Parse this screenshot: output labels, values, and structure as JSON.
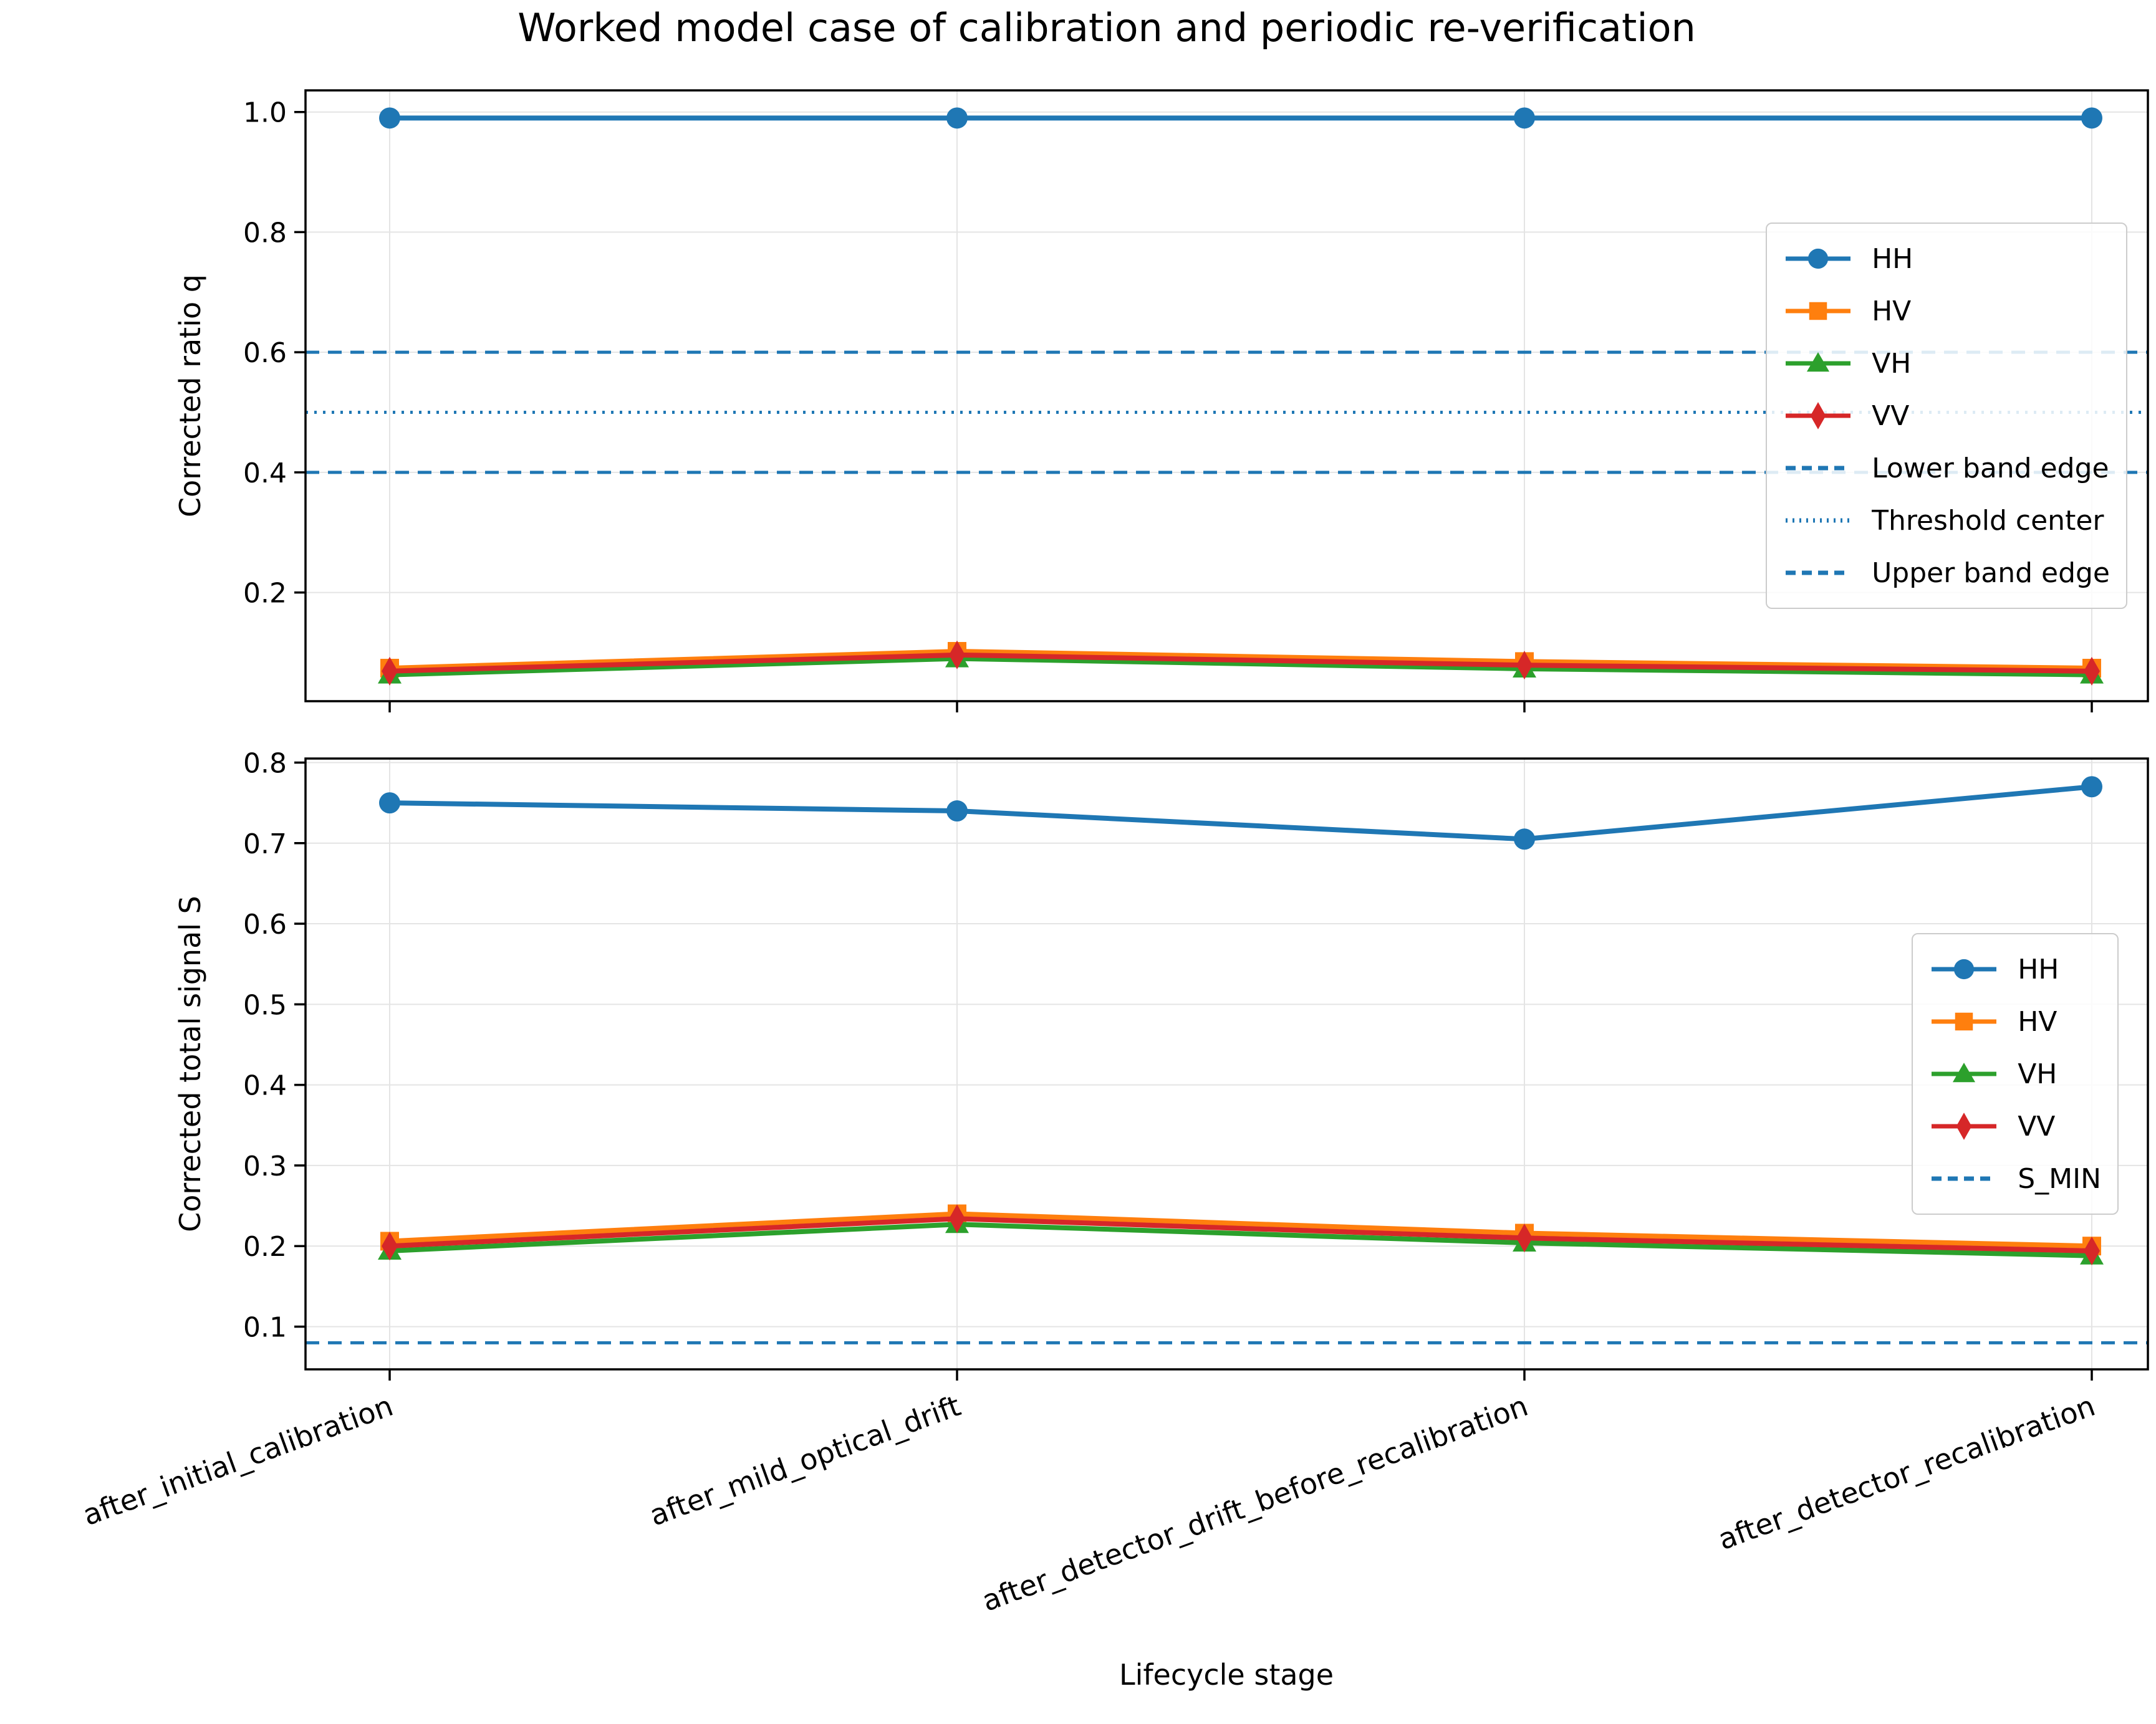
{
  "figure": {
    "title": "Worked model case of calibration and periodic re-verification",
    "xlabel": "Lifecycle stage",
    "background": "#ffffff"
  },
  "colors": {
    "HH": "#1f77b4",
    "HV": "#ff7f0e",
    "VH": "#2ca02c",
    "VV": "#d62728",
    "reference": "#1f77b4",
    "grid": "#e4e4e4",
    "spine": "#000000",
    "text": "#000000"
  },
  "categories": [
    "after_initial_calibration",
    "after_mild_optical_drift",
    "after_detector_drift_before_recalibration",
    "after_detector_recalibration"
  ],
  "chart_data": [
    {
      "type": "line",
      "ylabel": "Corrected ratio q",
      "categories": [
        "after_initial_calibration",
        "after_mild_optical_drift",
        "after_detector_drift_before_recalibration",
        "after_detector_recalibration"
      ],
      "series": [
        {
          "name": "HH",
          "marker": "circle",
          "color": "#1f77b4",
          "values": [
            0.99,
            0.99,
            0.99,
            0.99
          ]
        },
        {
          "name": "HV",
          "marker": "square",
          "color": "#ff7f0e",
          "values": [
            0.074,
            0.102,
            0.085,
            0.074
          ]
        },
        {
          "name": "VH",
          "marker": "triangle",
          "color": "#2ca02c",
          "values": [
            0.063,
            0.09,
            0.073,
            0.063
          ]
        },
        {
          "name": "VV",
          "marker": "diamond",
          "color": "#d62728",
          "values": [
            0.069,
            0.096,
            0.079,
            0.069
          ]
        }
      ],
      "reference_lines": [
        {
          "label": "Lower band edge",
          "value": 0.4,
          "style": "dashed",
          "color": "#1f77b4"
        },
        {
          "label": "Threshold center",
          "value": 0.5,
          "style": "dotted",
          "color": "#1f77b4"
        },
        {
          "label": "Upper band edge",
          "value": 0.6,
          "style": "dashed",
          "color": "#1f77b4"
        }
      ],
      "yticks": [
        0.2,
        0.4,
        0.6,
        0.8,
        1.0
      ],
      "ylim": [
        0.019,
        1.036
      ],
      "grid": true,
      "legend": [
        "HH",
        "HV",
        "VH",
        "VV",
        "Lower band edge",
        "Threshold center",
        "Upper band edge"
      ],
      "legend_position": "center right inside"
    },
    {
      "type": "line",
      "ylabel": "Corrected total signal S",
      "categories": [
        "after_initial_calibration",
        "after_mild_optical_drift",
        "after_detector_drift_before_recalibration",
        "after_detector_recalibration"
      ],
      "series": [
        {
          "name": "HH",
          "marker": "circle",
          "color": "#1f77b4",
          "values": [
            0.75,
            0.74,
            0.705,
            0.77
          ]
        },
        {
          "name": "HV",
          "marker": "square",
          "color": "#ff7f0e",
          "values": [
            0.206,
            0.24,
            0.216,
            0.2
          ]
        },
        {
          "name": "VH",
          "marker": "triangle",
          "color": "#2ca02c",
          "values": [
            0.194,
            0.227,
            0.204,
            0.188
          ]
        },
        {
          "name": "VV",
          "marker": "diamond",
          "color": "#d62728",
          "values": [
            0.2,
            0.234,
            0.21,
            0.194
          ]
        }
      ],
      "reference_lines": [
        {
          "label": "S_MIN",
          "value": 0.08,
          "style": "dashed",
          "color": "#1f77b4"
        }
      ],
      "yticks": [
        0.1,
        0.2,
        0.3,
        0.4,
        0.5,
        0.6,
        0.7,
        0.8
      ],
      "ylim": [
        0.047,
        0.805
      ],
      "grid": true,
      "legend": [
        "HH",
        "HV",
        "VH",
        "VV",
        "S_MIN"
      ],
      "legend_position": "center right inside"
    }
  ]
}
